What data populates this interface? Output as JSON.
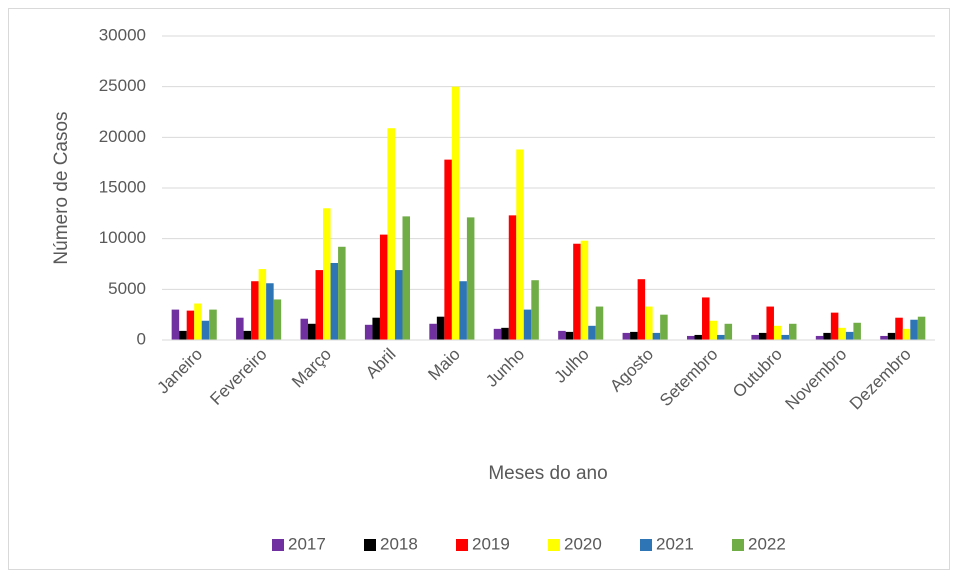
{
  "chart_data": {
    "type": "bar",
    "x_label": "Meses do ano",
    "y_label": "Número de Casos",
    "categories": [
      "Janeiro",
      "Fevereiro",
      "Março",
      "Abril",
      "Maio",
      "Junho",
      "Julho",
      "Agosto",
      "Setembro",
      "Outubro",
      "Novembro",
      "Dezembro"
    ],
    "series": [
      {
        "name": "2017",
        "color": "#7030a0",
        "values": [
          3000,
          2200,
          2100,
          1500,
          1600,
          1100,
          900,
          700,
          400,
          500,
          400,
          400
        ]
      },
      {
        "name": "2018",
        "color": "#000000",
        "values": [
          900,
          900,
          1600,
          2200,
          2300,
          1200,
          800,
          800,
          500,
          700,
          700,
          700
        ]
      },
      {
        "name": "2019",
        "color": "#ff0000",
        "values": [
          2900,
          5800,
          6900,
          10400,
          17800,
          12300,
          9500,
          6000,
          4200,
          3300,
          2700,
          2200
        ]
      },
      {
        "name": "2020",
        "color": "#ffff00",
        "values": [
          3600,
          7000,
          13000,
          20900,
          25000,
          18800,
          9800,
          3300,
          1900,
          1400,
          1200,
          1100
        ]
      },
      {
        "name": "2021",
        "color": "#2e75b6",
        "values": [
          1900,
          5600,
          7600,
          6900,
          5800,
          3000,
          1400,
          700,
          500,
          500,
          800,
          2000
        ]
      },
      {
        "name": "2022",
        "color": "#70ad47",
        "values": [
          3000,
          4000,
          9200,
          12200,
          12100,
          5900,
          3300,
          2500,
          1600,
          1600,
          1700,
          2300
        ]
      }
    ],
    "ylim": [
      0,
      30000
    ],
    "yticks": [
      0,
      5000,
      10000,
      15000,
      20000,
      25000,
      30000
    ],
    "grid": true,
    "legend": "bottom"
  }
}
